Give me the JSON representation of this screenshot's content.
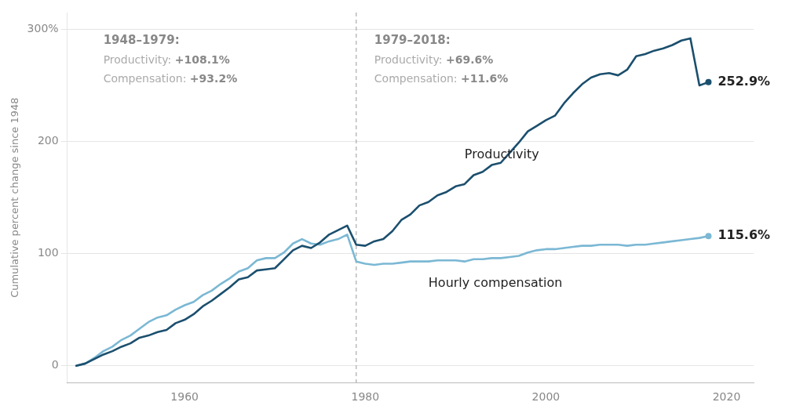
{
  "chart_data": {
    "type": "line",
    "y_label": "Cumulative percent change since 1948",
    "x": [
      1948,
      1949,
      1950,
      1951,
      1952,
      1953,
      1954,
      1955,
      1956,
      1957,
      1958,
      1959,
      1960,
      1961,
      1962,
      1963,
      1964,
      1965,
      1966,
      1967,
      1968,
      1969,
      1970,
      1971,
      1972,
      1973,
      1974,
      1975,
      1976,
      1977,
      1978,
      1979,
      1980,
      1981,
      1982,
      1983,
      1984,
      1985,
      1986,
      1987,
      1988,
      1989,
      1990,
      1991,
      1992,
      1993,
      1994,
      1995,
      1996,
      1997,
      1998,
      1999,
      2000,
      2001,
      2002,
      2003,
      2004,
      2005,
      2006,
      2007,
      2008,
      2009,
      2010,
      2011,
      2012,
      2013,
      2014,
      2015,
      2016,
      2017,
      2018
    ],
    "series": [
      {
        "name": "Hourly compensation",
        "color": "#7bb8d4",
        "values": [
          0,
          2,
          7,
          13,
          17,
          23,
          27,
          33,
          39,
          43,
          45,
          50,
          54,
          57,
          63,
          67,
          73,
          78,
          84,
          87,
          94,
          96,
          96,
          101,
          109,
          113,
          109,
          108,
          111,
          113,
          117,
          93,
          91,
          90,
          91,
          91,
          92,
          93,
          93,
          93,
          94,
          94,
          94,
          93,
          95,
          95,
          96,
          96,
          97,
          98,
          101,
          103,
          104,
          104,
          105,
          106,
          107,
          107,
          108,
          108,
          108,
          107,
          108,
          108,
          109,
          110,
          111,
          112,
          113,
          114,
          115.6
        ]
      },
      {
        "name": "Productivity",
        "color": "#1b4f6e",
        "values": [
          0,
          2,
          6,
          10,
          13,
          17,
          20,
          25,
          27,
          30,
          32,
          38,
          41,
          46,
          53,
          58,
          64,
          70,
          77,
          79,
          85,
          86,
          87,
          95,
          103,
          107,
          105,
          110,
          117,
          121,
          125,
          108,
          107,
          111,
          113,
          120,
          130,
          135,
          143,
          146,
          152,
          155,
          160,
          162,
          170,
          173,
          179,
          181,
          190,
          199,
          209,
          214,
          219,
          223,
          234,
          243,
          251,
          257,
          260,
          261,
          259,
          264,
          276,
          278,
          281,
          283,
          286,
          290,
          292,
          250,
          252.9
        ]
      }
    ],
    "xlim": [
      1947,
      2023
    ],
    "xticks": [
      1960,
      1980,
      2000,
      2020
    ],
    "ylim": [
      -15,
      315
    ],
    "yticks": [
      0,
      100,
      200,
      {
        "value": 300,
        "label": "300%"
      }
    ],
    "grid": "y",
    "vlines": [
      {
        "x": 1979,
        "line_style": "dashed"
      }
    ],
    "annotations": [
      {
        "text": "Productivity",
        "x": 1991,
        "y": 188
      },
      {
        "text": "Hourly compensation",
        "x": 1987,
        "y": 73
      }
    ],
    "end_labels": [
      {
        "text": "252.9%",
        "x": 2018,
        "y": 252.9
      },
      {
        "text": "115.6%",
        "x": 2018,
        "y": 115.6
      }
    ],
    "notes": [
      {
        "x": 1951,
        "y": 295,
        "parts": [
          "1948–1979:"
        ]
      },
      {
        "x": 1951,
        "y": 277,
        "parts": [
          "Productivity: ",
          "+108.1%"
        ]
      },
      {
        "x": 1951,
        "y": 260,
        "parts": [
          "Compensation: ",
          "+93.2%"
        ]
      },
      {
        "x": 1981,
        "y": 295,
        "parts": [
          "1979–2018:"
        ]
      },
      {
        "x": 1981,
        "y": 277,
        "parts": [
          "Productivity: ",
          "+69.6%"
        ]
      },
      {
        "x": 1981,
        "y": 260,
        "parts": [
          "Compensation: ",
          "+11.6%"
        ]
      }
    ]
  }
}
